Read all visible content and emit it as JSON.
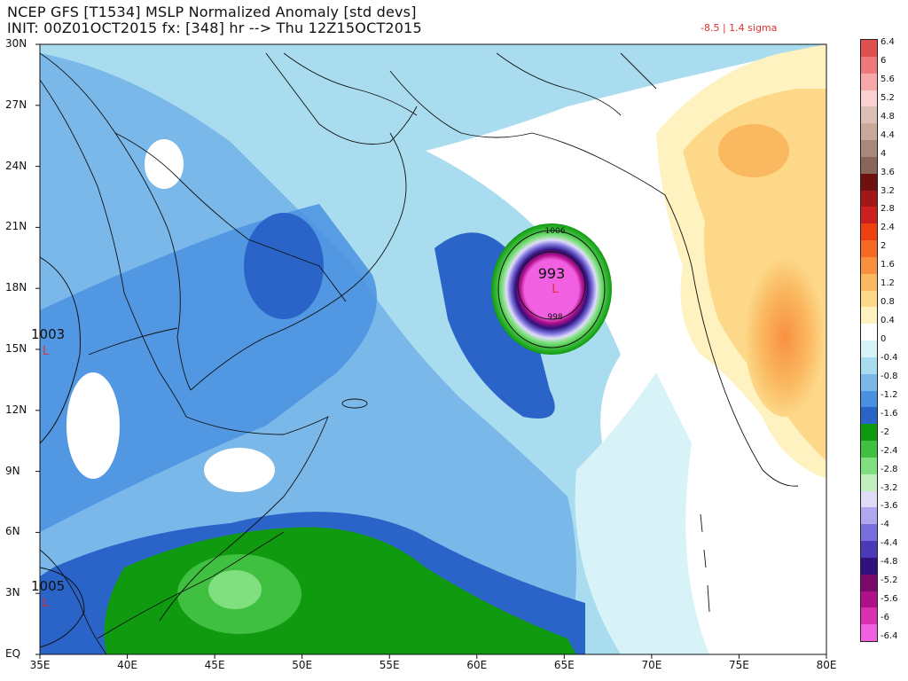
{
  "title": {
    "line1": "NCEP GFS [T1534] MSLP Normalized Anomaly [std devs]",
    "line2": "INIT: 00Z01OCT2015 fx: [348] hr --> Thu 12Z15OCT2015"
  },
  "stats_note": "-8.5 | 1.4 sigma",
  "axes": {
    "lat_labels": [
      "30N",
      "27N",
      "24N",
      "21N",
      "18N",
      "15N",
      "12N",
      "9N",
      "6N",
      "3N",
      "EQ"
    ],
    "lon_labels": [
      "35E",
      "40E",
      "45E",
      "50E",
      "55E",
      "60E",
      "65E",
      "70E",
      "75E",
      "80E"
    ],
    "lat_range": [
      0,
      30
    ],
    "lon_range": [
      35,
      80
    ]
  },
  "pressure_labels": {
    "low_center": "993",
    "inner_contour": "998",
    "outer_contour": "1006",
    "west_low_1": "1003",
    "west_low_2": "1005"
  },
  "low_marker_symbol": "L",
  "colorbar": {
    "labels": [
      "6.4",
      "6",
      "5.6",
      "5.2",
      "4.8",
      "4.4",
      "4",
      "3.6",
      "3.2",
      "2.8",
      "2.4",
      "2",
      "1.6",
      "1.2",
      "0.8",
      "0.4",
      "0",
      "-0.4",
      "-0.8",
      "-1.2",
      "-1.6",
      "-2",
      "-2.4",
      "-2.8",
      "-3.2",
      "-3.6",
      "-4",
      "-4.4",
      "-4.8",
      "-5.2",
      "-5.6",
      "-6",
      "-6.4"
    ],
    "colors": [
      "#e05050",
      "#ee7a7a",
      "#f7a8a8",
      "#fbd0d0",
      "#dcc0b8",
      "#c8a898",
      "#a88878",
      "#8a6658",
      "#6e1010",
      "#a01818",
      "#cc2020",
      "#ee4010",
      "#f56a20",
      "#f89040",
      "#fab860",
      "#fcd888",
      "#fdf2c0",
      "#ffffff",
      "#d8f3f8",
      "#a8dcee",
      "#7ab8ea",
      "#4a90e0",
      "#2a64c8",
      "#109a10",
      "#40c040",
      "#80e080",
      "#c0f0c0",
      "#e0dcf8",
      "#b0a8ee",
      "#7a70dd",
      "#4a3ab8",
      "#30107a",
      "#7a0a6a",
      "#b0108a",
      "#d830b0",
      "#f060e0"
    ],
    "level_labels": [
      "6.4",
      "6",
      "5.6",
      "5.2",
      "4.8",
      "4.4",
      "4",
      "3.6",
      "3.2",
      "2.8",
      "2.4",
      "2",
      "1.6",
      "1.2",
      "0.8",
      "0.4",
      "0",
      "-0.4",
      "-0.8",
      "-1.2",
      "-1.6",
      "-2",
      "-2.4",
      "-2.8",
      "-3.2",
      "-3.6",
      "-4",
      "-4.4",
      "-4.8",
      "-5.2",
      "-5.6",
      "-6",
      "-6.4"
    ]
  },
  "palette": {
    "ocean_light": "#ffffff",
    "anom_m04": "#d8f3f8",
    "anom_m08": "#a8dcee",
    "anom_m12": "#7ab8ea",
    "anom_m16": "#4a90e0",
    "anom_m20": "#2a64c8",
    "anom_m24": "#109a10",
    "anom_m28": "#40c040",
    "anom_pos04": "#fdf2c0",
    "anom_pos08": "#fcd888",
    "anom_pos12": "#f89040",
    "storm_magenta": "#f060e0",
    "storm_purple": "#30107a",
    "coast": "#111111"
  }
}
